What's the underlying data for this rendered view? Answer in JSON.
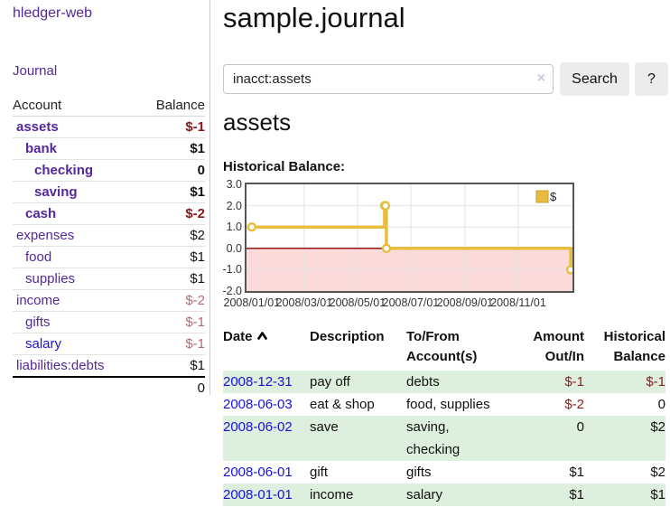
{
  "app": {
    "brand": "hledger-web",
    "nav_journal": "Journal"
  },
  "sidebar": {
    "account_header": "Account",
    "balance_header": "Balance",
    "accounts": [
      {
        "name": "assets",
        "balance": "$-1",
        "depth": 1,
        "bold": true,
        "balance_tone": "neg-strong",
        "link_tone": "purple"
      },
      {
        "name": "bank",
        "balance": "$1",
        "depth": 2,
        "bold": true,
        "balance_tone": "plain",
        "link_tone": "purple"
      },
      {
        "name": "checking",
        "balance": "0",
        "depth": 3,
        "bold": true,
        "balance_tone": "plain",
        "link_tone": "purple"
      },
      {
        "name": "saving",
        "balance": "$1",
        "depth": 3,
        "bold": true,
        "balance_tone": "plain",
        "link_tone": "purple"
      },
      {
        "name": "cash",
        "balance": "$-2",
        "depth": 2,
        "bold": true,
        "balance_tone": "neg-strong",
        "link_tone": "purple"
      },
      {
        "name": "expenses",
        "balance": "$2",
        "depth": 1,
        "bold": false,
        "balance_tone": "plain",
        "link_tone": "purple"
      },
      {
        "name": "food",
        "balance": "$1",
        "depth": 2,
        "bold": false,
        "balance_tone": "plain",
        "link_tone": "purple"
      },
      {
        "name": "supplies",
        "balance": "$1",
        "depth": 2,
        "bold": false,
        "balance_tone": "plain",
        "link_tone": "purple"
      },
      {
        "name": "income",
        "balance": "$-2",
        "depth": 1,
        "bold": false,
        "balance_tone": "neg-soft",
        "link_tone": "purple"
      },
      {
        "name": "gifts",
        "balance": "$-1",
        "depth": 2,
        "bold": false,
        "balance_tone": "neg-soft",
        "link_tone": "purple"
      },
      {
        "name": "salary",
        "balance": "$-1",
        "depth": 2,
        "bold": false,
        "balance_tone": "neg-soft",
        "link_tone": "blue"
      },
      {
        "name": "liabilities:debts",
        "balance": "$1",
        "depth": 1,
        "bold": false,
        "balance_tone": "plain",
        "link_tone": "purple"
      }
    ],
    "total": "0"
  },
  "main": {
    "title": "sample.journal",
    "search": {
      "value": "inacct:assets",
      "clear_icon": "×",
      "search_button": "Search",
      "help_button": "?"
    },
    "account_heading": "assets",
    "section_heading": "Historical Balance:"
  },
  "chart_data": {
    "type": "line",
    "step": true,
    "title": "Historical Balance:",
    "series": [
      {
        "name": "$",
        "color": "#e8bc3d",
        "points": [
          [
            "2008-01-01",
            1
          ],
          [
            "2008-06-01",
            2
          ],
          [
            "2008-06-02",
            2
          ],
          [
            "2008-06-03",
            0
          ],
          [
            "2008-12-31",
            -1
          ]
        ]
      }
    ],
    "x_tick_labels": [
      "2008/01/01",
      "2008/03/01",
      "2008/05/01",
      "2008/07/01",
      "2008/09/01",
      "2008/11/01"
    ],
    "y_tick_labels": [
      "3.0",
      "2.0",
      "1.0",
      "0.0",
      "-1.0",
      "-2.0"
    ],
    "y_ticks": [
      3,
      2,
      1,
      0,
      -1,
      -2
    ],
    "ylim": [
      -2,
      3
    ],
    "xlim": [
      "2007-12-26",
      "2009-01-02"
    ],
    "grid": true,
    "gridline_color": "#e2e2e2",
    "zero_line_color": "#8b0000",
    "negative_fill": "#fbdada",
    "legend_label": "$",
    "legend_position": "top-right"
  },
  "register": {
    "headers": [
      {
        "lines": [
          "Date"
        ],
        "align": "left",
        "sort": "ascending"
      },
      {
        "lines": [
          "Description"
        ],
        "align": "left"
      },
      {
        "lines": [
          "To/From",
          "Account(s)"
        ],
        "align": "left"
      },
      {
        "lines": [
          "Amount",
          "Out/In"
        ],
        "align": "right"
      },
      {
        "lines": [
          "Historical",
          "Balance"
        ],
        "align": "right"
      }
    ],
    "rows": [
      {
        "date": "2008-12-31",
        "description": "pay off",
        "accounts": [
          "debts"
        ],
        "amount": "$-1",
        "balance": "$-1",
        "amount_negative": true,
        "balance_negative": true
      },
      {
        "date": "2008-06-03",
        "description": "eat & shop",
        "accounts": [
          "food, supplies"
        ],
        "amount": "$-2",
        "balance": "0",
        "amount_negative": true,
        "balance_negative": false
      },
      {
        "date": "2008-06-02",
        "description": "save",
        "accounts": [
          "saving,",
          "checking"
        ],
        "amount": "0",
        "balance": "$2",
        "amount_negative": false,
        "balance_negative": false
      },
      {
        "date": "2008-06-01",
        "description": "gift",
        "accounts": [
          "gifts"
        ],
        "amount": "$1",
        "balance": "$2",
        "amount_negative": false,
        "balance_negative": false
      },
      {
        "date": "2008-01-01",
        "description": "income",
        "accounts": [
          "salary"
        ],
        "amount": "$1",
        "balance": "$1",
        "amount_negative": false,
        "balance_negative": false
      }
    ]
  }
}
